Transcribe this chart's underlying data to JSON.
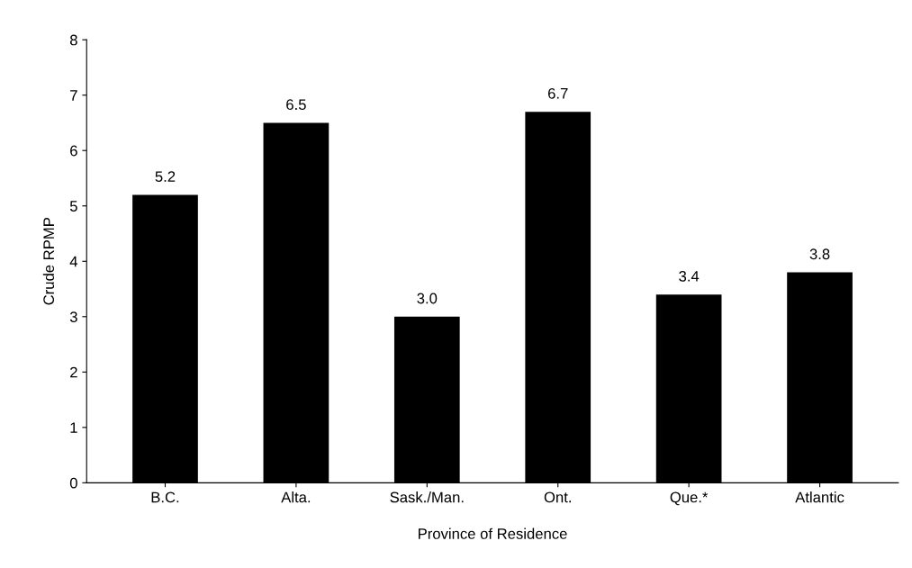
{
  "chart_data": {
    "type": "bar",
    "xlabel": "Province of Residence",
    "ylabel": "Crude RPMP",
    "categories": [
      "B.C.",
      "Alta.",
      "Sask./Man.",
      "Ont.",
      "Que.*",
      "Atlantic"
    ],
    "values": [
      5.2,
      6.5,
      3.0,
      6.7,
      3.4,
      3.8
    ],
    "value_labels": [
      "5.2",
      "6.5",
      "3.0",
      "6.7",
      "3.4",
      "3.8"
    ],
    "color": "#000000",
    "ylim": [
      0,
      8
    ],
    "yticks": [
      0,
      1,
      2,
      3,
      4,
      5,
      6,
      7,
      8
    ],
    "grid": false,
    "legend": false
  }
}
